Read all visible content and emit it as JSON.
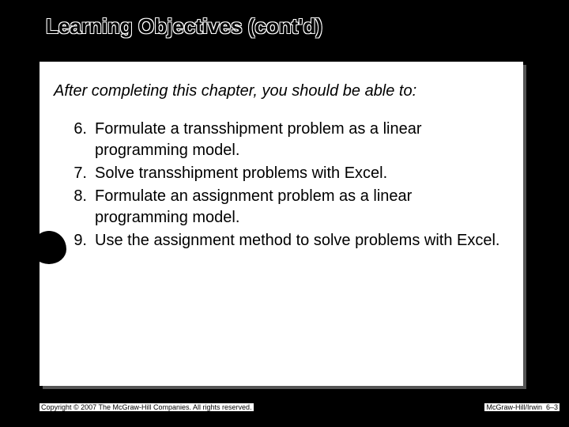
{
  "title": "Learning Objectives (cont'd)",
  "intro": "After completing this chapter, you should be able to:",
  "items": [
    {
      "num": "6.",
      "text": "Formulate a transshipment problem as a linear programming model."
    },
    {
      "num": "7.",
      "text": "Solve transshipment problems with Excel."
    },
    {
      "num": "8.",
      "text": "Formulate an assignment problem as a linear programming model."
    },
    {
      "num": "9.",
      "text": "Use the assignment method to solve problems with Excel."
    }
  ],
  "footer": {
    "left": "Copyright © 2007 The McGraw-Hill Companies. All rights reserved.",
    "right_label": "McGraw-Hill/Irwin",
    "right_page": "6–3"
  },
  "colors": {
    "background": "#000000",
    "content_bg": "#ffffff",
    "text": "#000000"
  },
  "typography": {
    "title_fontsize": 26,
    "body_fontsize": 20,
    "footer_fontsize": 9
  }
}
